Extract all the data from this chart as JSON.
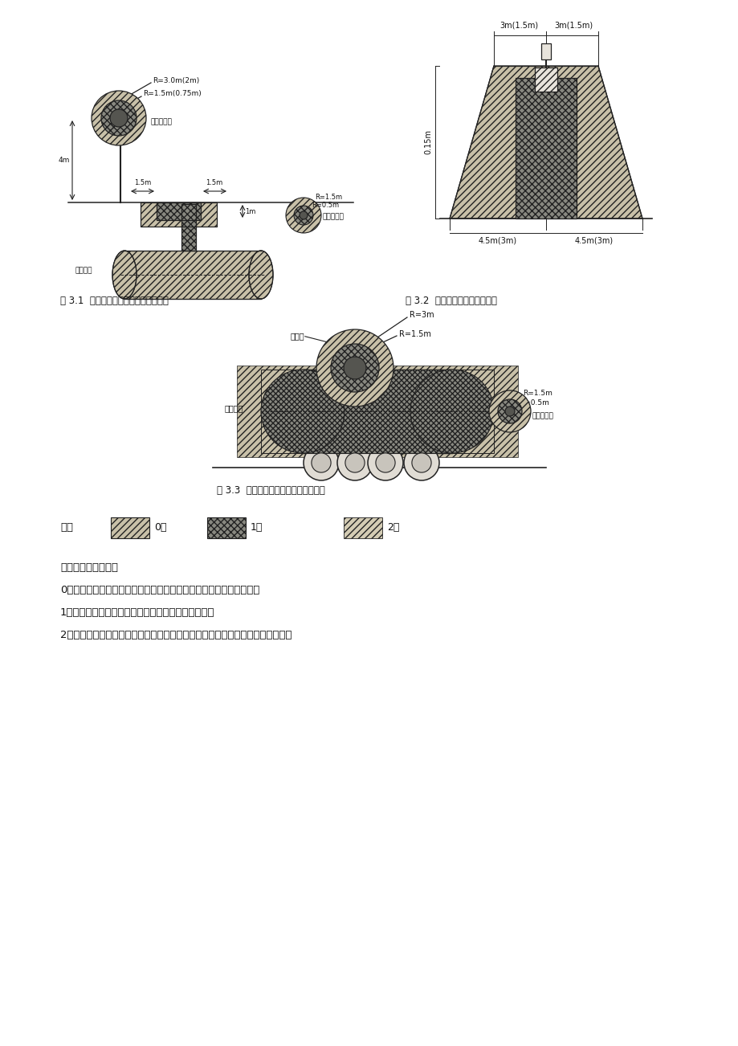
{
  "fig31_caption": "图 3.1  埋地卧式储罐爆炸危险区域划分",
  "fig32_caption": "图 3.2  加油机操作危险区域划分",
  "fig33_caption": "图 3.3  油罐车卸油时爆炸危险区域划分",
  "legend_title": "图例",
  "legend_items": [
    "0区",
    "1区",
    "2区"
  ],
  "text_lines": [
    "爆炸危险区域划分：",
    "0区：爆炸性气体混合物连续、长时间、频繁出现或长期存在的场所；",
    "1区：正常情况下爆炸性气体可能短时间出现的场所；",
    "2区：在正常情况下爆炸性气体不能出现，不正常情况下偶尔短时间出现的场所。"
  ],
  "line_color": "#222222"
}
